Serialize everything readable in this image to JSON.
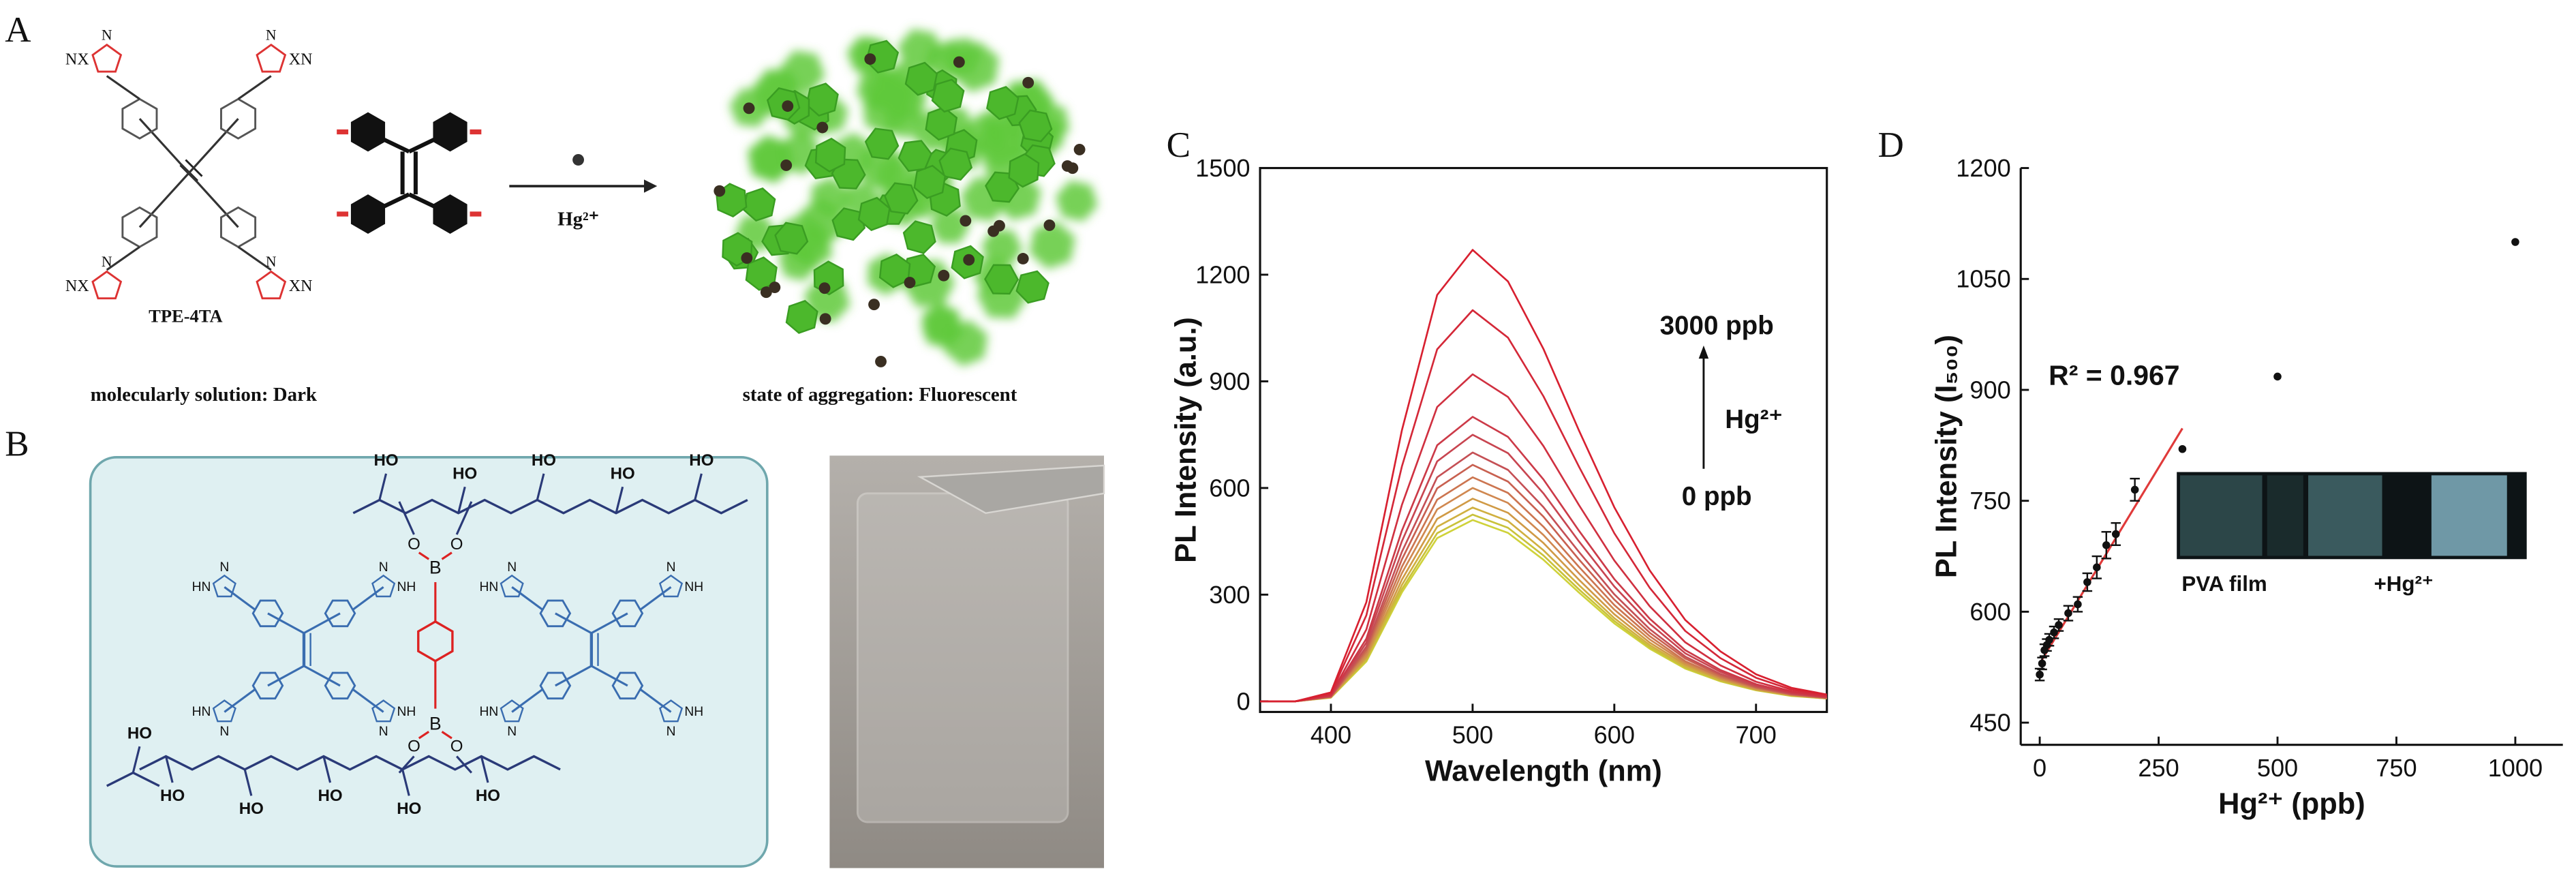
{
  "panel_labels": [
    "A",
    "B",
    "C",
    "D"
  ],
  "diagram_a": {
    "compound": "TPE-4TA",
    "group_left": "NX",
    "group_right": "XN",
    "ring_atom": "N",
    "reagent": "Hg²⁺",
    "caption_left": "molecularly solution: Dark",
    "caption_right": "state of aggregation: Fluorescent"
  },
  "diagram_b": {
    "hydroxyl": "HO",
    "boron": "B",
    "oxygen": "O",
    "ring_atom": "N",
    "ring_nh": "NH",
    "ring_hn": "HN"
  },
  "chart_data": [
    {
      "type": "line",
      "xlabel": "Wavelength (nm)",
      "ylabel": "PL Intensity (a.u.)",
      "box": true,
      "xlim": [
        350,
        750
      ],
      "xticks": [
        400,
        500,
        600,
        700
      ],
      "ylim": [
        -30,
        1500
      ],
      "yticks": [
        0,
        300,
        600,
        900,
        1200,
        1500
      ],
      "annotations": [
        "3000 ppb",
        "Hg²⁺",
        "0 ppb"
      ],
      "x": [
        350,
        375,
        400,
        425,
        450,
        475,
        500,
        525,
        550,
        575,
        600,
        625,
        650,
        675,
        700,
        725,
        750
      ],
      "series": [
        {
          "color": "#cfd23a",
          "values": [
            0,
            0,
            10,
            112,
            306,
            459,
            510,
            474,
            398,
            306,
            219,
            148,
            92,
            56,
            31,
            15,
            8
          ]
        },
        {
          "color": "#c9c23a",
          "values": [
            0,
            0,
            11,
            116,
            315,
            473,
            525,
            488,
            410,
            315,
            226,
            152,
            95,
            58,
            32,
            16,
            8
          ]
        },
        {
          "color": "#d0b040",
          "values": [
            0,
            0,
            11,
            120,
            327,
            491,
            545,
            507,
            425,
            327,
            234,
            158,
            98,
            60,
            33,
            16,
            8
          ]
        },
        {
          "color": "#d09a45",
          "values": [
            0,
            0,
            11,
            125,
            342,
            513,
            570,
            530,
            445,
            342,
            245,
            165,
            103,
            63,
            34,
            17,
            9
          ]
        },
        {
          "color": "#d08850",
          "values": [
            0,
            0,
            12,
            132,
            360,
            540,
            600,
            558,
            468,
            360,
            258,
            174,
            108,
            66,
            36,
            18,
            9
          ]
        },
        {
          "color": "#cc7550",
          "values": [
            0,
            0,
            13,
            139,
            378,
            567,
            630,
            586,
            491,
            378,
            271,
            183,
            113,
            69,
            38,
            19,
            9
          ]
        },
        {
          "color": "#c86050",
          "values": [
            0,
            0,
            13,
            146,
            399,
            599,
            665,
            618,
            519,
            399,
            286,
            193,
            120,
            73,
            40,
            20,
            10
          ]
        },
        {
          "color": "#c55055",
          "values": [
            0,
            0,
            14,
            154,
            420,
            630,
            700,
            651,
            546,
            420,
            301,
            203,
            126,
            77,
            42,
            21,
            11
          ]
        },
        {
          "color": "#c84550",
          "values": [
            0,
            0,
            15,
            165,
            450,
            675,
            750,
            698,
            585,
            450,
            323,
            218,
            135,
            83,
            45,
            23,
            11
          ]
        },
        {
          "color": "#cc3a48",
          "values": [
            0,
            0,
            16,
            176,
            480,
            720,
            800,
            744,
            624,
            480,
            344,
            232,
            144,
            88,
            48,
            24,
            12
          ]
        },
        {
          "color": "#d03040",
          "values": [
            0,
            0,
            18,
            202,
            552,
            828,
            920,
            856,
            718,
            552,
            396,
            267,
            166,
            101,
            55,
            28,
            14
          ]
        },
        {
          "color": "#d42838",
          "values": [
            0,
            0,
            22,
            242,
            660,
            990,
            1100,
            1023,
            858,
            660,
            473,
            319,
            198,
            121,
            66,
            33,
            17
          ]
        },
        {
          "color": "#d82030",
          "values": [
            0,
            0,
            25,
            279,
            762,
            1143,
            1270,
            1181,
            991,
            762,
            546,
            368,
            229,
            140,
            76,
            38,
            19
          ]
        }
      ]
    },
    {
      "type": "scatter",
      "xlabel": "Hg²⁺ (ppb)",
      "ylabel": "PL Intensity (I₅₀₀)",
      "box": false,
      "xlim": [
        -40,
        1100
      ],
      "xticks": [
        0,
        250,
        500,
        750,
        1000
      ],
      "ylim": [
        420,
        1200
      ],
      "yticks": [
        450,
        600,
        750,
        900,
        1050,
        1200
      ],
      "annotations": [
        "R² = 0.967"
      ],
      "annotation_color": "#e03a3a",
      "inset_labels": [
        "PVA film",
        "+Hg²⁺"
      ],
      "x": [
        0,
        5,
        10,
        15,
        20,
        30,
        40,
        60,
        80,
        100,
        120,
        140,
        160,
        200,
        300,
        500,
        1000
      ],
      "series": [
        {
          "color": "#111111",
          "values": [
            515,
            530,
            548,
            555,
            562,
            572,
            582,
            598,
            610,
            640,
            660,
            690,
            705,
            765,
            820,
            918,
            1100
          ],
          "errors": [
            8,
            8,
            8,
            8,
            8,
            8,
            8,
            10,
            10,
            12,
            15,
            18,
            15,
            15,
            null,
            null,
            null
          ]
        }
      ],
      "fit": {
        "color": "#e03a3a",
        "x": [
          0,
          300
        ],
        "values": [
          530,
          848
        ]
      }
    }
  ]
}
